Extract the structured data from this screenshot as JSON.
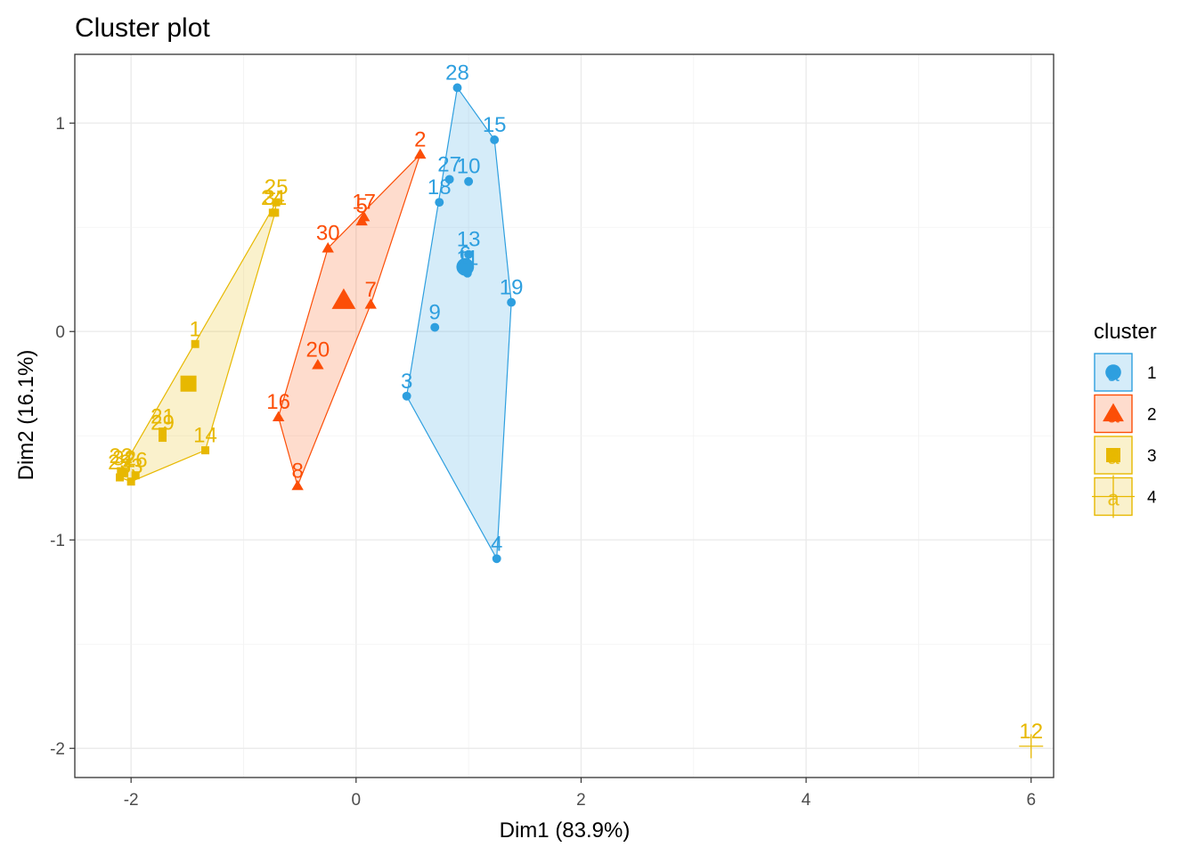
{
  "chart_data": {
    "type": "scatter",
    "title": "Cluster plot",
    "xlabel": "Dim1 (83.9%)",
    "ylabel": "Dim2 (16.1%)",
    "xlim": [
      -2.5,
      6.2
    ],
    "ylim": [
      -2.14,
      1.33
    ],
    "x_ticks": [
      -2,
      0,
      2,
      4,
      6
    ],
    "y_ticks": [
      -2,
      -1,
      0,
      1
    ],
    "grid": true,
    "legend": {
      "title": "cluster",
      "position": "right"
    },
    "clusters": [
      {
        "name": "1",
        "color": "#2E9FDF",
        "shape": "circle",
        "hull": true,
        "centroid": [
          0.97,
          0.31
        ],
        "points": [
          {
            "label": "28",
            "x": 0.9,
            "y": 1.17
          },
          {
            "label": "15",
            "x": 1.23,
            "y": 0.92
          },
          {
            "label": "27",
            "x": 0.83,
            "y": 0.73
          },
          {
            "label": "10",
            "x": 1.0,
            "y": 0.72
          },
          {
            "label": "18",
            "x": 0.74,
            "y": 0.62
          },
          {
            "label": "13",
            "x": 1.0,
            "y": 0.37
          },
          {
            "label": "6",
            "x": 0.97,
            "y": 0.3
          },
          {
            "label": "11",
            "x": 0.99,
            "y": 0.28
          },
          {
            "label": "19",
            "x": 1.38,
            "y": 0.14
          },
          {
            "label": "9",
            "x": 0.7,
            "y": 0.02
          },
          {
            "label": "3",
            "x": 0.45,
            "y": -0.31
          },
          {
            "label": "4",
            "x": 1.25,
            "y": -1.09
          }
        ]
      },
      {
        "name": "2",
        "color": "#FC4E07",
        "shape": "triangle",
        "hull": true,
        "centroid": [
          -0.11,
          0.15
        ],
        "points": [
          {
            "label": "2",
            "x": 0.57,
            "y": 0.85
          },
          {
            "label": "17",
            "x": 0.07,
            "y": 0.55
          },
          {
            "label": "5",
            "x": 0.05,
            "y": 0.53
          },
          {
            "label": "30",
            "x": -0.25,
            "y": 0.4
          },
          {
            "label": "7",
            "x": 0.13,
            "y": 0.13
          },
          {
            "label": "20",
            "x": -0.34,
            "y": -0.16
          },
          {
            "label": "16",
            "x": -0.69,
            "y": -0.41
          },
          {
            "label": "8",
            "x": -0.52,
            "y": -0.74
          }
        ]
      },
      {
        "name": "3",
        "color": "#E7B800",
        "shape": "square",
        "hull": true,
        "centroid": [
          -1.49,
          -0.25
        ],
        "points": [
          {
            "label": "25",
            "x": -0.71,
            "y": 0.62
          },
          {
            "label": "31",
            "x": -0.72,
            "y": 0.57
          },
          {
            "label": "24",
            "x": -0.74,
            "y": 0.57
          },
          {
            "label": "1",
            "x": -1.43,
            "y": -0.06
          },
          {
            "label": "21",
            "x": -1.72,
            "y": -0.48
          },
          {
            "label": "29",
            "x": -1.72,
            "y": -0.51
          },
          {
            "label": "14",
            "x": -1.34,
            "y": -0.57
          },
          {
            "label": "22",
            "x": -2.09,
            "y": -0.67
          },
          {
            "label": "32",
            "x": -2.06,
            "y": -0.68
          },
          {
            "label": "26",
            "x": -1.96,
            "y": -0.69
          },
          {
            "label": "23",
            "x": -2.1,
            "y": -0.7
          },
          {
            "label": "33",
            "x": -2.0,
            "y": -0.72
          }
        ]
      },
      {
        "name": "4",
        "color": "#E7B800",
        "shape": "plus",
        "hull": false,
        "centroid": null,
        "points": [
          {
            "label": "12",
            "x": 6.0,
            "y": -1.99
          }
        ]
      }
    ]
  }
}
